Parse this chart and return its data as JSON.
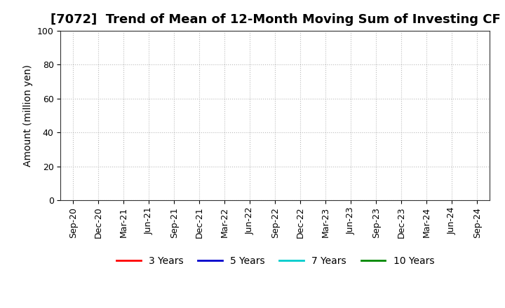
{
  "title": "[7072]  Trend of Mean of 12-Month Moving Sum of Investing CF",
  "ylabel": "Amount (million yen)",
  "ylim": [
    0,
    100
  ],
  "yticks": [
    0,
    20,
    40,
    60,
    80,
    100
  ],
  "x_labels": [
    "Sep-20",
    "Dec-20",
    "Mar-21",
    "Jun-21",
    "Sep-21",
    "Dec-21",
    "Mar-22",
    "Jun-22",
    "Sep-22",
    "Dec-22",
    "Mar-23",
    "Jun-23",
    "Sep-23",
    "Dec-23",
    "Mar-24",
    "Jun-24",
    "Sep-24"
  ],
  "legend_entries": [
    {
      "label": "3 Years",
      "color": "#ff0000"
    },
    {
      "label": "5 Years",
      "color": "#0000cc"
    },
    {
      "label": "7 Years",
      "color": "#00cccc"
    },
    {
      "label": "10 Years",
      "color": "#008800"
    }
  ],
  "background_color": "#ffffff",
  "grid_color": "#bbbbbb",
  "title_fontsize": 13,
  "axis_label_fontsize": 10,
  "tick_fontsize": 9,
  "legend_fontsize": 10
}
